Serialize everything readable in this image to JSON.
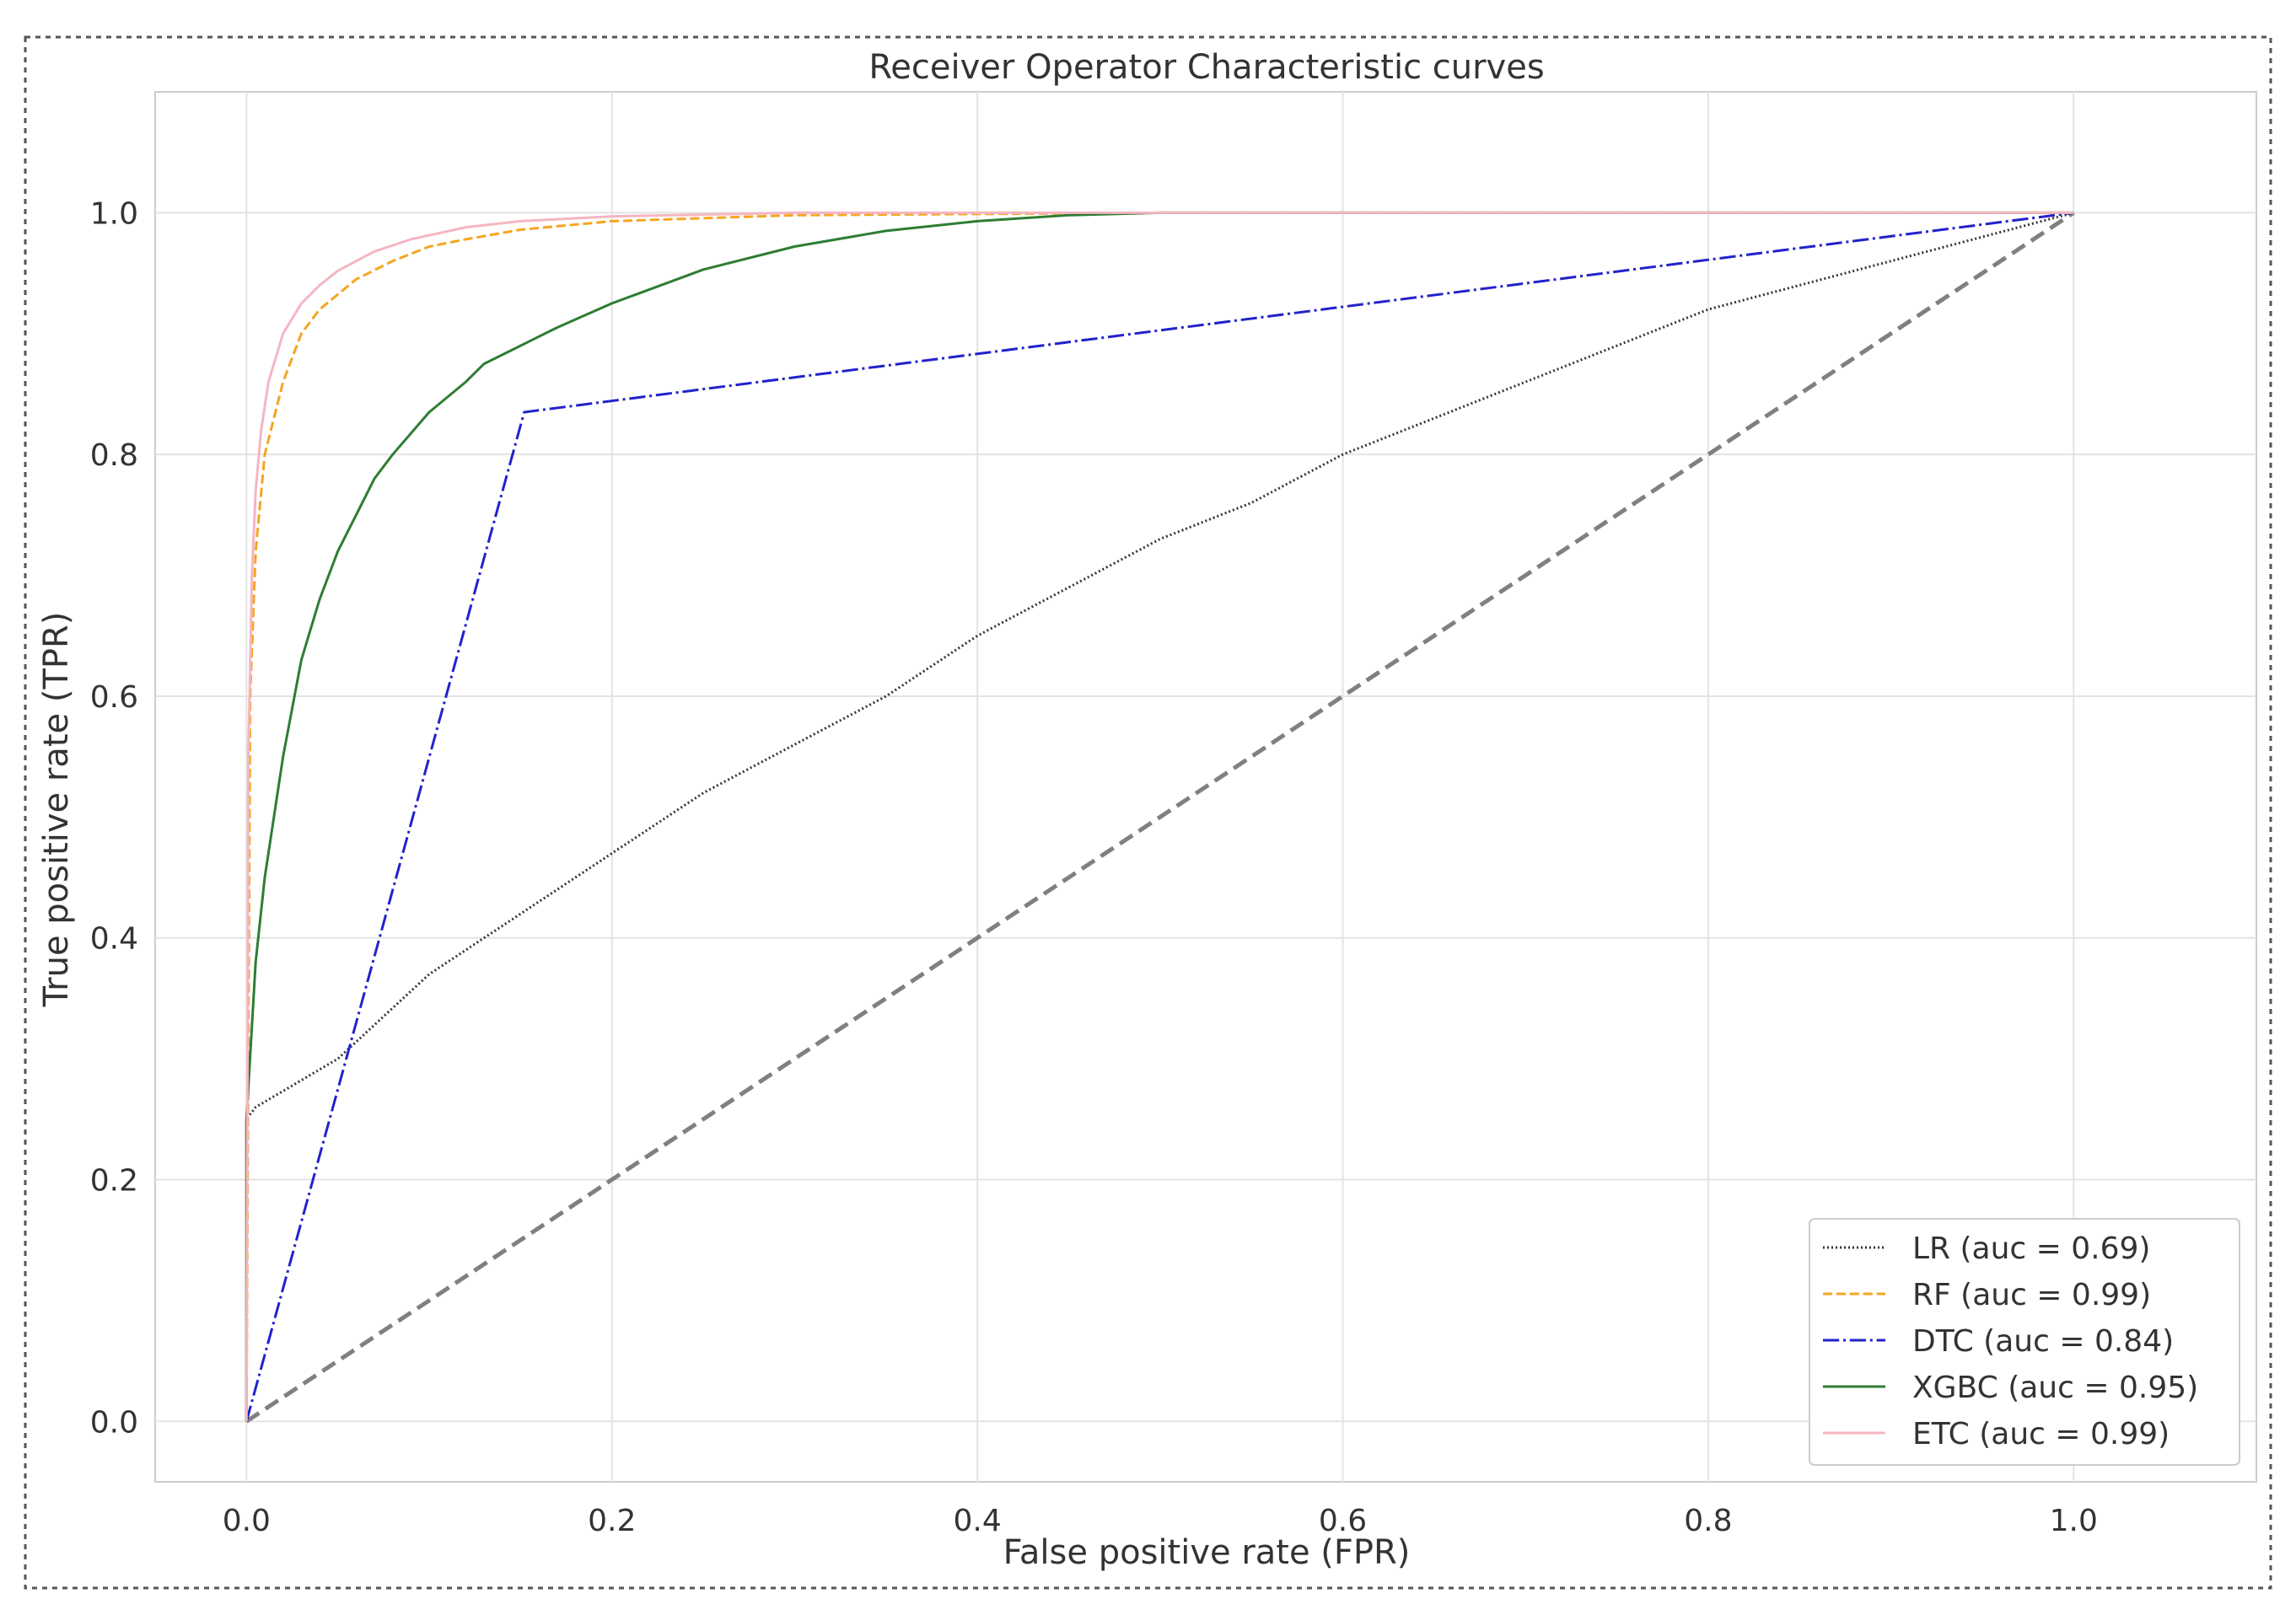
{
  "chart_data": {
    "type": "line",
    "title": "Receiver Operator Characteristic curves",
    "xlabel": "False positive rate (FPR)",
    "ylabel": "True positive rate (TPR)",
    "xlim": [
      -0.05,
      1.1
    ],
    "ylim": [
      -0.05,
      1.1
    ],
    "xticks": [
      0.0,
      0.2,
      0.4,
      0.6,
      0.8,
      1.0
    ],
    "yticks": [
      0.0,
      0.2,
      0.4,
      0.6,
      0.8,
      1.0
    ],
    "xtick_labels": [
      "0.0",
      "0.2",
      "0.4",
      "0.6",
      "0.8",
      "1.0"
    ],
    "ytick_labels": [
      "0.0",
      "0.2",
      "0.4",
      "0.6",
      "0.8",
      "1.0"
    ],
    "grid": true,
    "legend_position": "lower-right",
    "diagonal": {
      "x": [
        0,
        1
      ],
      "y": [
        0,
        1
      ],
      "color": "#808080",
      "style": "dashed"
    },
    "series": [
      {
        "name": "LR (auc = 0.69)",
        "color": "#333333",
        "style": "dotted",
        "x": [
          0,
          0,
          0.005,
          0.05,
          0.1,
          0.15,
          0.2,
          0.25,
          0.3,
          0.35,
          0.4,
          0.45,
          0.5,
          0.55,
          0.6,
          0.65,
          0.7,
          0.75,
          0.8,
          0.85,
          0.9,
          0.95,
          1.0
        ],
        "y": [
          0,
          0.25,
          0.26,
          0.3,
          0.37,
          0.42,
          0.47,
          0.52,
          0.56,
          0.6,
          0.65,
          0.69,
          0.73,
          0.76,
          0.8,
          0.83,
          0.86,
          0.89,
          0.92,
          0.94,
          0.96,
          0.98,
          1.0
        ]
      },
      {
        "name": "RF (auc = 0.99)",
        "color": "#f5a623",
        "style": "dashed",
        "x": [
          0,
          0.002,
          0.005,
          0.01,
          0.02,
          0.03,
          0.04,
          0.06,
          0.08,
          0.1,
          0.12,
          0.15,
          0.2,
          0.3,
          0.5,
          1.0
        ],
        "y": [
          0,
          0.6,
          0.72,
          0.8,
          0.86,
          0.9,
          0.92,
          0.945,
          0.96,
          0.972,
          0.978,
          0.986,
          0.993,
          0.998,
          1.0,
          1.0
        ]
      },
      {
        "name": "DTC (auc = 0.84)",
        "color": "#2222cc",
        "style": "dashdot",
        "x": [
          0,
          0.152,
          1.0
        ],
        "y": [
          0,
          0.835,
          1.0
        ]
      },
      {
        "name": "XGBC (auc = 0.95)",
        "color": "#2e7d32",
        "style": "solid",
        "x": [
          0,
          0,
          0.005,
          0.01,
          0.02,
          0.03,
          0.04,
          0.05,
          0.06,
          0.07,
          0.08,
          0.1,
          0.12,
          0.13,
          0.15,
          0.17,
          0.2,
          0.25,
          0.3,
          0.35,
          0.4,
          0.45,
          0.5,
          1.0
        ],
        "y": [
          0,
          0.25,
          0.38,
          0.45,
          0.55,
          0.63,
          0.68,
          0.72,
          0.75,
          0.78,
          0.8,
          0.835,
          0.86,
          0.875,
          0.89,
          0.905,
          0.925,
          0.953,
          0.972,
          0.985,
          0.993,
          0.998,
          1.0,
          1.0
        ]
      },
      {
        "name": "ETC (auc = 0.99)",
        "color": "#f4b6c2",
        "style": "solid",
        "x": [
          0,
          0.001,
          0.003,
          0.005,
          0.008,
          0.012,
          0.02,
          0.03,
          0.04,
          0.05,
          0.07,
          0.09,
          0.12,
          0.15,
          0.2,
          0.3,
          1.0
        ],
        "y": [
          0,
          0.55,
          0.7,
          0.77,
          0.82,
          0.86,
          0.9,
          0.925,
          0.94,
          0.952,
          0.968,
          0.978,
          0.988,
          0.993,
          0.997,
          1.0,
          1.0
        ]
      }
    ]
  }
}
